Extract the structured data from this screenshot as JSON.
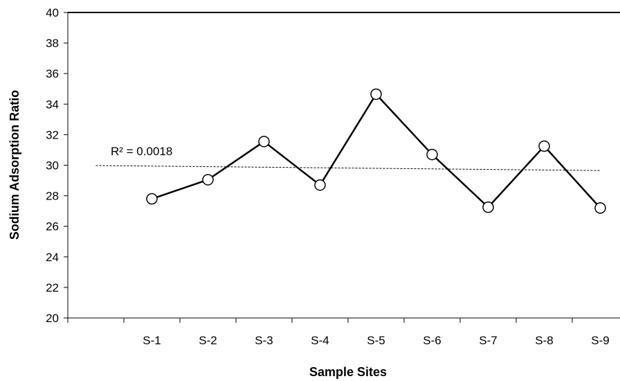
{
  "chart_data": {
    "type": "line",
    "categories": [
      "S-1",
      "S-2",
      "S-3",
      "S-4",
      "S-5",
      "S-6",
      "S-7",
      "S-8",
      "S-9"
    ],
    "series": [
      {
        "values": [
          27.8,
          29.05,
          31.55,
          28.7,
          34.65,
          30.7,
          27.25,
          31.25,
          27.2
        ]
      }
    ],
    "trendline": {
      "type": "linear",
      "r_squared_label": "R² = 0.0018",
      "start": 29.98,
      "end": 29.65
    },
    "xlabel": "Sample Sites",
    "ylabel": "Sodium Adsorption Ratio",
    "ylim": [
      20,
      40
    ],
    "yticks": [
      20,
      22,
      24,
      26,
      28,
      30,
      32,
      34,
      36,
      38,
      40
    ],
    "grid": false,
    "legend": "none",
    "colors": {
      "line": "#000000",
      "marker_fill": "#ffffff",
      "trendline": "#000000"
    }
  }
}
